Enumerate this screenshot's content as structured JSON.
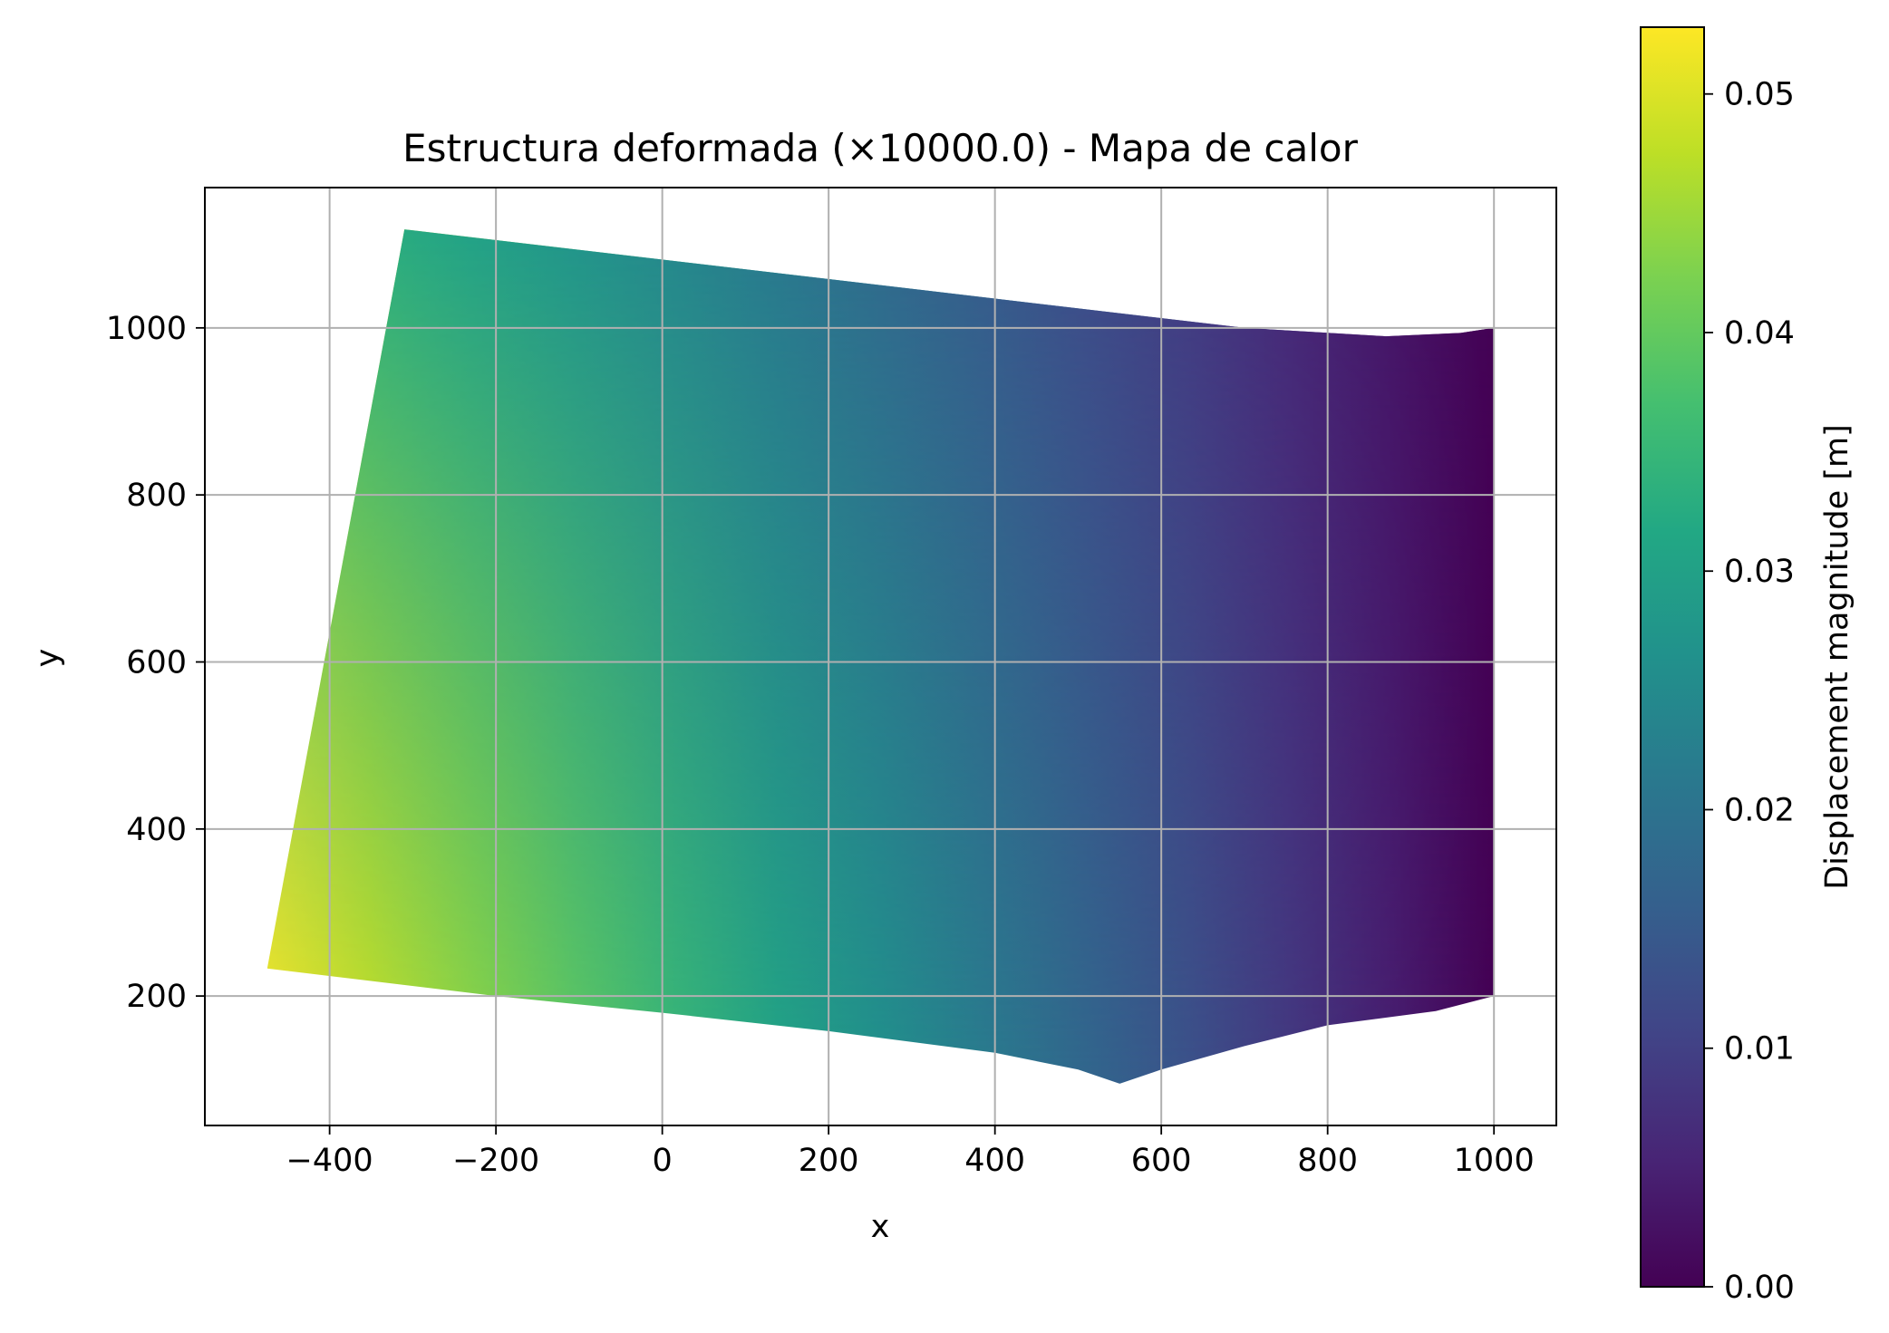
{
  "chart_data": {
    "type": "heatmap",
    "title": "Estructura deformada (×10000.0) - Mapa de calor",
    "xlabel": "x",
    "ylabel": "y",
    "xlim": [
      -550,
      1075
    ],
    "ylim": [
      45,
      1168
    ],
    "xticks": [
      -400,
      -200,
      0,
      200,
      400,
      600,
      800,
      1000
    ],
    "xtick_labels": [
      "−400",
      "−200",
      "0",
      "200",
      "400",
      "600",
      "800",
      "1000"
    ],
    "yticks": [
      200,
      400,
      600,
      800,
      1000
    ],
    "ytick_labels": [
      "200",
      "400",
      "600",
      "800",
      "1000"
    ],
    "grid": true,
    "colormap": "viridis",
    "colorbar": {
      "label": "Displacement magnitude [m]",
      "range": [
        0,
        0.0528
      ],
      "ticks": [
        0,
        0.01,
        0.02,
        0.03,
        0.04,
        0.05
      ],
      "tick_labels": [
        "0.00",
        "0.01",
        "0.02",
        "0.03",
        "0.04",
        "0.05"
      ]
    },
    "shape": {
      "outline": [
        [
          -310,
          1118
        ],
        [
          700,
          1000
        ],
        [
          870,
          990
        ],
        [
          960,
          994
        ],
        [
          1000,
          1000
        ],
        [
          1000,
          200
        ],
        [
          930,
          182
        ],
        [
          800,
          165
        ],
        [
          700,
          140
        ],
        [
          600,
          112
        ],
        [
          550,
          95
        ],
        [
          500,
          112
        ],
        [
          400,
          132
        ],
        [
          200,
          158
        ],
        [
          0,
          180
        ],
        [
          -200,
          200
        ],
        [
          -475,
          233
        ]
      ],
      "field_samples": [
        {
          "x": -475,
          "y": 233,
          "value": 0.0528
        },
        {
          "x": -310,
          "y": 1118,
          "value": 0.036
        },
        {
          "x": 1000,
          "y": 1000,
          "value": 0.0
        },
        {
          "x": 1000,
          "y": 200,
          "value": 0.0
        },
        {
          "x": 550,
          "y": 95,
          "value": 0.027
        }
      ]
    }
  }
}
